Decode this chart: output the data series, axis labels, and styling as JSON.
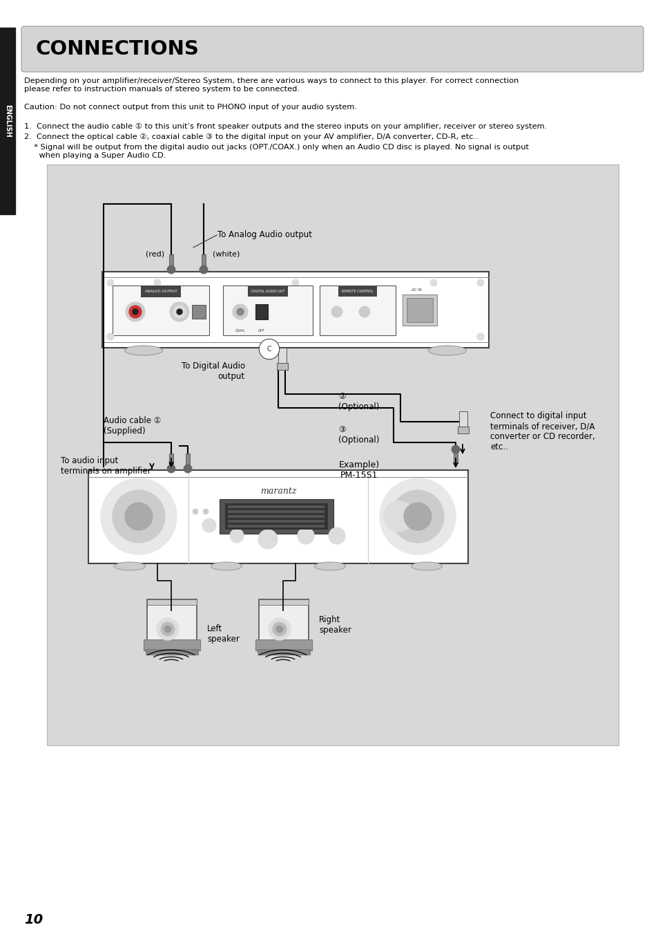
{
  "page_bg": "#ffffff",
  "sidebar_bg": "#1a1a1a",
  "sidebar_text": "ENGLISH",
  "title_box_bg": "#d4d4d4",
  "title_text": "CONNECTIONS",
  "diagram_bg": "#d8d8d8",
  "body_text_1": "Depending on your amplifier/receiver/Stereo System, there are various ways to connect to this player. For correct connection\nplease refer to instruction manuals of stereo system to be connected.",
  "caution_text": "Caution: Do not connect output from this unit to PHONO input of your audio system.",
  "bullet1": "1.  Connect the audio cable ① to this unit’s front speaker outputs and the stereo inputs on your amplifier, receiver or stereo system.",
  "bullet2": "2.  Connect the optical cable ②, coaxial cable ③ to the digital input on your AV amplifier, D/A converter, CD-R, etc..",
  "bullet3_a": "  * Signal will be output from the digital audio out jacks (OPT./COAX.) only when an Audio CD disc is played. No signal is output",
  "bullet3_b": "    when playing a Super Audio CD.",
  "label_analog": "To Analog Audio output",
  "label_red": "(red)",
  "label_white": "(white)",
  "label_digital": "To Digital Audio\noutput",
  "label_opt": "②\n(Optional)",
  "label_coax": "③\n(Optional)",
  "label_audio_cable": "Audio cable ①\n(Supplied)",
  "label_to_audio": "To audio input\nterminals on amplifier",
  "label_example": "Example)\nPM-15S1",
  "label_connect": "Connect to digital input\nterminals of receiver, D/A\nconverter or CD recorder,\netc..",
  "label_left": "Left\nspeaker",
  "label_right": "Right\nspeaker",
  "page_number": "10"
}
